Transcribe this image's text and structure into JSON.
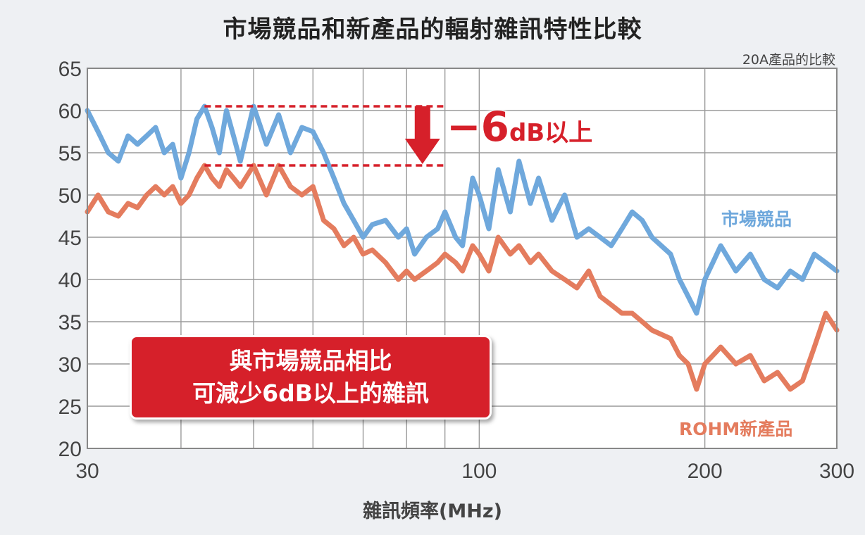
{
  "title": "市場競品和新產品的輻射雜訊特性比較",
  "subtitle": "20A產品的比較",
  "callout": {
    "line1": "與市場競品相比",
    "line2": "可減少6dB以上的雜訊"
  },
  "annotation": {
    "big": "−6",
    "small": "dB以上"
  },
  "chart_data": {
    "type": "line",
    "xlabel": "雜訊頻率(MHz)",
    "ylabel": "",
    "x_scale": "log",
    "xlim": [
      30,
      300
    ],
    "ylim": [
      20,
      65
    ],
    "x_ticks": [
      30,
      100,
      200,
      300
    ],
    "y_ticks": [
      20,
      25,
      30,
      35,
      40,
      45,
      50,
      55,
      60,
      65
    ],
    "grid": true,
    "series": [
      {
        "name": "市場競品",
        "color": "#6fa8dc",
        "x": [
          30,
          31,
          32,
          33,
          34,
          35,
          36,
          37,
          38,
          39,
          40,
          41,
          42,
          43,
          44,
          45,
          46,
          47,
          48,
          50,
          52,
          54,
          56,
          58,
          60,
          62,
          64,
          66,
          68,
          70,
          72,
          75,
          78,
          80,
          82,
          85,
          88,
          90,
          93,
          95,
          98,
          100,
          103,
          106,
          110,
          113,
          117,
          120,
          125,
          130,
          135,
          140,
          145,
          150,
          155,
          160,
          165,
          170,
          180,
          185,
          190,
          195,
          200,
          205,
          210,
          220,
          230,
          240,
          250,
          260,
          270,
          280,
          290,
          300
        ],
        "y": [
          60,
          57.5,
          55,
          54,
          57,
          56,
          57,
          58,
          55,
          56,
          52,
          55,
          59,
          60.5,
          58,
          55,
          60,
          57,
          54,
          60.5,
          56,
          59.5,
          55,
          58,
          57.5,
          55,
          52,
          49,
          47,
          45,
          46.5,
          47,
          45,
          46,
          43,
          45,
          46,
          48,
          45,
          44,
          52,
          50,
          46,
          53,
          48,
          54,
          49,
          52,
          47,
          50,
          45,
          46,
          45,
          44,
          46,
          48,
          47,
          45,
          43,
          40,
          38,
          36,
          40,
          42,
          44,
          41,
          43,
          40,
          39,
          41,
          40,
          43,
          42,
          41
        ]
      },
      {
        "name": "ROHM新產品",
        "color": "#e47c5e",
        "x": [
          30,
          31,
          32,
          33,
          34,
          35,
          36,
          37,
          38,
          39,
          40,
          41,
          42,
          43,
          44,
          45,
          46,
          47,
          48,
          50,
          52,
          54,
          56,
          58,
          60,
          62,
          64,
          66,
          68,
          70,
          72,
          75,
          78,
          80,
          82,
          85,
          88,
          90,
          93,
          95,
          98,
          100,
          103,
          106,
          110,
          113,
          117,
          120,
          125,
          130,
          135,
          140,
          145,
          150,
          155,
          160,
          165,
          170,
          180,
          185,
          190,
          195,
          200,
          205,
          210,
          220,
          230,
          240,
          250,
          260,
          270,
          280,
          290,
          300
        ],
        "y": [
          48,
          50,
          48,
          47.5,
          49,
          48.5,
          50,
          51,
          50,
          51,
          49,
          50,
          52,
          53.5,
          52,
          51,
          53,
          52,
          51,
          53.5,
          50,
          53.5,
          51,
          50,
          51,
          47,
          46,
          44,
          45,
          43,
          43.5,
          42,
          40,
          41,
          40,
          41,
          42,
          43,
          42,
          41,
          44,
          43,
          41,
          45,
          43,
          44,
          42,
          43,
          41,
          40,
          39,
          41,
          38,
          37,
          36,
          36,
          35,
          34,
          33,
          31,
          30,
          27,
          30,
          31,
          32,
          30,
          31,
          28,
          29,
          27,
          28,
          32,
          36,
          34
        ]
      }
    ]
  }
}
